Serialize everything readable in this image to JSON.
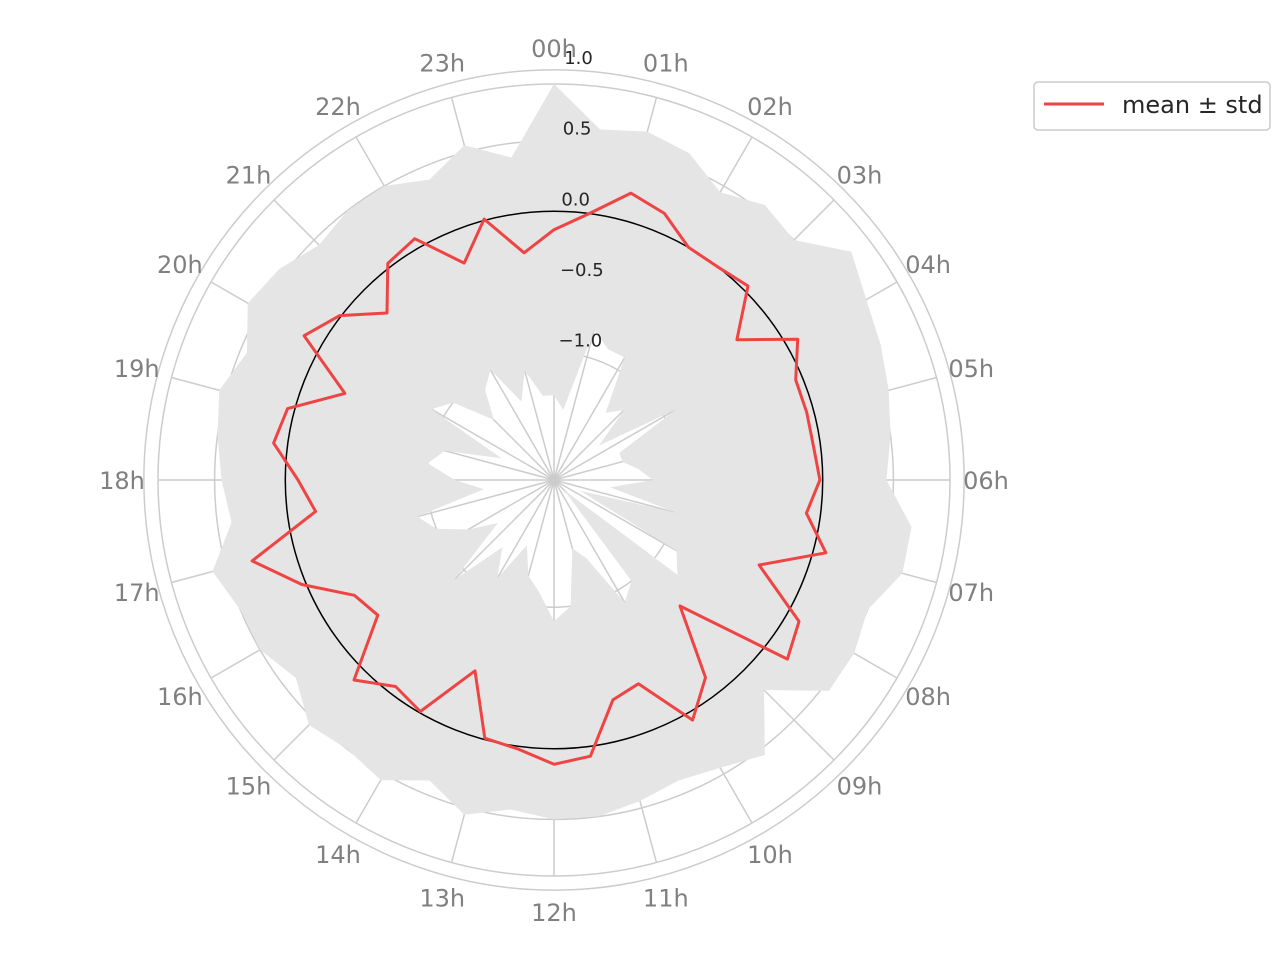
{
  "chart_data": {
    "type": "polar-line",
    "title": "",
    "angular_labels": [
      "00h",
      "01h",
      "02h",
      "03h",
      "04h",
      "05h",
      "06h",
      "07h",
      "08h",
      "09h",
      "10h",
      "11h",
      "12h",
      "13h",
      "14h",
      "15h",
      "16h",
      "17h",
      "18h",
      "19h",
      "20h",
      "21h",
      "22h",
      "23h"
    ],
    "angular_direction": "clockwise",
    "angular_zero": "top",
    "radial_ticks": [
      -1.0,
      -0.5,
      0.0,
      0.5,
      1.0
    ],
    "radial_tick_labels": [
      "−1.0",
      "−0.5",
      "0.0",
      "0.5",
      "1.0"
    ],
    "rlim": [
      -1.9,
      0.9
    ],
    "grid": true,
    "legend": {
      "label": "mean ± std",
      "position": "upper-right-outside"
    },
    "colors": {
      "line": "#ef4444",
      "band": "#e5e5e5",
      "grid": "#cccccc",
      "zero_circle": "#000000"
    },
    "series": [
      {
        "name": "mean ± std",
        "x": [
          0,
          0.5,
          1,
          1.5,
          2,
          2.5,
          3,
          3.5,
          4,
          4.5,
          5,
          5.5,
          6,
          6.5,
          7,
          7.5,
          8,
          8.5,
          9,
          9.5,
          10,
          10.5,
          11,
          11.5,
          12,
          12.5,
          13,
          13.5,
          14,
          14.5,
          15,
          15.5,
          16,
          16.5,
          17,
          17.5,
          18,
          18.5,
          19,
          19.5,
          20,
          20.5,
          21,
          21.5,
          22,
          22.5,
          23,
          23.5
        ],
        "mean": [
          -0.13,
          0.0,
          0.2,
          0.14,
          0.0,
          0.0,
          0.04,
          -0.27,
          0.09,
          -0.05,
          -0.05,
          -0.05,
          -0.02,
          -0.1,
          0.09,
          -0.33,
          0.1,
          0.18,
          -0.64,
          -0.14,
          0.06,
          -0.34,
          -0.29,
          0.07,
          0.11,
          0.02,
          -0.01,
          -0.44,
          -0.01,
          -0.06,
          0.1,
          -0.33,
          -0.27,
          0.03,
          0.31,
          -0.2,
          -0.09,
          0.1,
          0.05,
          -0.3,
          0.14,
          0.01,
          -0.23,
          0.03,
          0.07,
          -0.24,
          0.01,
          -0.28
        ],
        "lower": [
          -1.3,
          -1.4,
          -0.8,
          -0.9,
          -0.9,
          -1.3,
          -1.2,
          -1.5,
          -0.9,
          -1.4,
          -1.4,
          -1.3,
          -1.2,
          -1.5,
          -1.0,
          -1.7,
          -0.9,
          -0.8,
          -1.8,
          -1.0,
          -0.9,
          -1.3,
          -1.4,
          -1.0,
          -0.9,
          -1.1,
          -1.2,
          -1.4,
          -1.1,
          -1.3,
          -0.9,
          -1.4,
          -1.2,
          -1.0,
          -0.9,
          -1.4,
          -1.2,
          -1.0,
          -1.1,
          -1.5,
          -0.9,
          -1.0,
          -1.3,
          -1.1,
          -1.0,
          -1.3,
          -1.1,
          -1.3
        ],
        "upper": [
          0.9,
          0.6,
          0.65,
          0.6,
          0.45,
          0.55,
          0.5,
          0.75,
          0.65,
          0.6,
          0.55,
          0.5,
          0.45,
          0.65,
          0.65,
          0.5,
          0.55,
          0.55,
          0.2,
          0.55,
          0.45,
          0.4,
          0.45,
          0.5,
          0.5,
          0.45,
          0.55,
          0.4,
          0.55,
          0.5,
          0.55,
          0.4,
          0.5,
          0.5,
          0.6,
          0.4,
          0.45,
          0.5,
          0.55,
          0.45,
          0.6,
          0.55,
          0.45,
          0.5,
          0.5,
          0.4,
          0.55,
          0.4
        ]
      }
    ]
  }
}
